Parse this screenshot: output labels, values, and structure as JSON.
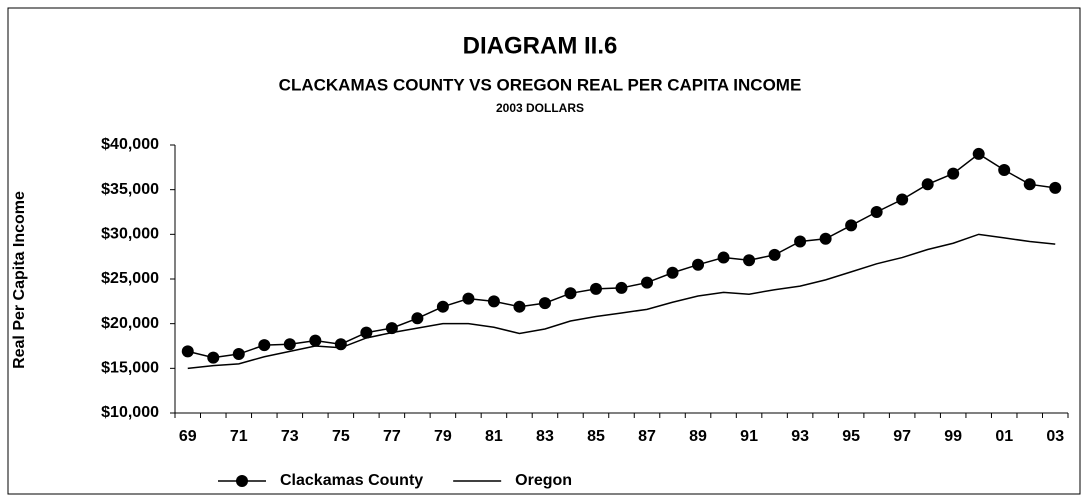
{
  "chart_data": {
    "type": "line",
    "title": "DIAGRAM II.6",
    "subtitle": "CLACKAMAS COUNTY VS OREGON REAL PER CAPITA INCOME",
    "note": "2003 DOLLARS",
    "y_label": "Real Per Capita Income",
    "categories": [
      "69",
      null,
      "71",
      null,
      "73",
      null,
      "75",
      null,
      "77",
      null,
      "79",
      null,
      "81",
      null,
      "83",
      null,
      "85",
      null,
      "87",
      null,
      "89",
      null,
      "91",
      null,
      "93",
      null,
      "95",
      null,
      "97",
      null,
      "99",
      null,
      "01",
      null,
      "03"
    ],
    "series": [
      {
        "name": "Clackamas County",
        "color": "#000000",
        "marker": true,
        "values": [
          16900,
          16200,
          16600,
          17600,
          17700,
          18100,
          17700,
          19000,
          19500,
          20600,
          21900,
          22800,
          22500,
          21900,
          22300,
          23400,
          23900,
          24000,
          24600,
          25700,
          26600,
          27400,
          27100,
          27700,
          29200,
          29500,
          31000,
          32500,
          33900,
          35600,
          36800,
          39000,
          37200,
          35600,
          35200
        ]
      },
      {
        "name": "Oregon",
        "color": "#000000",
        "marker": false,
        "values": [
          15000,
          15300,
          15500,
          16300,
          16900,
          17500,
          17300,
          18400,
          19000,
          19500,
          20000,
          20000,
          19600,
          18900,
          19400,
          20300,
          20800,
          21200,
          21600,
          22400,
          23100,
          23500,
          23300,
          23800,
          24200,
          24900,
          25800,
          26700,
          27400,
          28300,
          29000,
          30000,
          29600,
          29200,
          28900
        ]
      }
    ],
    "ylim": [
      10000,
      40000
    ],
    "yticks": [
      {
        "value": 10000,
        "label": "$10,000"
      },
      {
        "value": 15000,
        "label": "$15,000"
      },
      {
        "value": 20000,
        "label": "$20,000"
      },
      {
        "value": 25000,
        "label": "$25,000"
      },
      {
        "value": 30000,
        "label": "$30,000"
      },
      {
        "value": 35000,
        "label": "$35,000"
      },
      {
        "value": 40000,
        "label": "$40,000"
      }
    ],
    "grid": false,
    "legend": "bottom"
  }
}
